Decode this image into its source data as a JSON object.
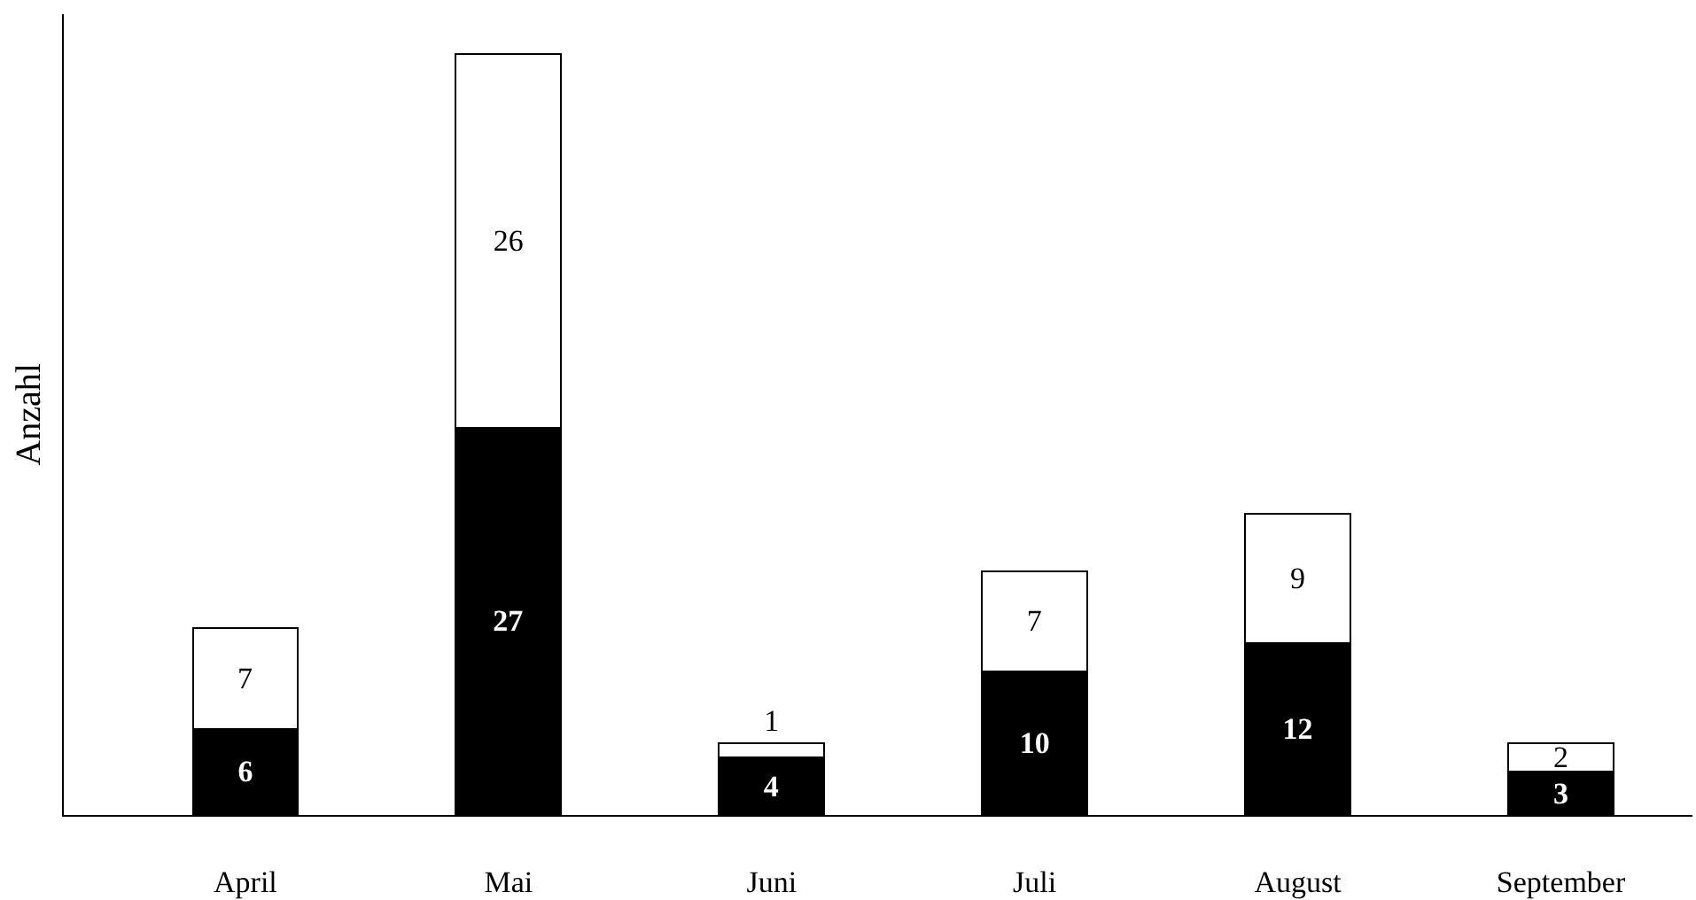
{
  "chart_data": {
    "type": "bar",
    "ylabel": "Anzahl",
    "categories": [
      "April",
      "Mai",
      "Juni",
      "Juli",
      "August",
      "September"
    ],
    "series": [
      {
        "color": "#000000",
        "values": [
          6,
          27,
          4,
          10,
          12,
          3
        ]
      },
      {
        "color": "#ffffff",
        "values": [
          7,
          26,
          1,
          7,
          9,
          2
        ]
      }
    ],
    "stacked": true,
    "data_labels": true,
    "grid": false,
    "tick_labels": "x"
  }
}
